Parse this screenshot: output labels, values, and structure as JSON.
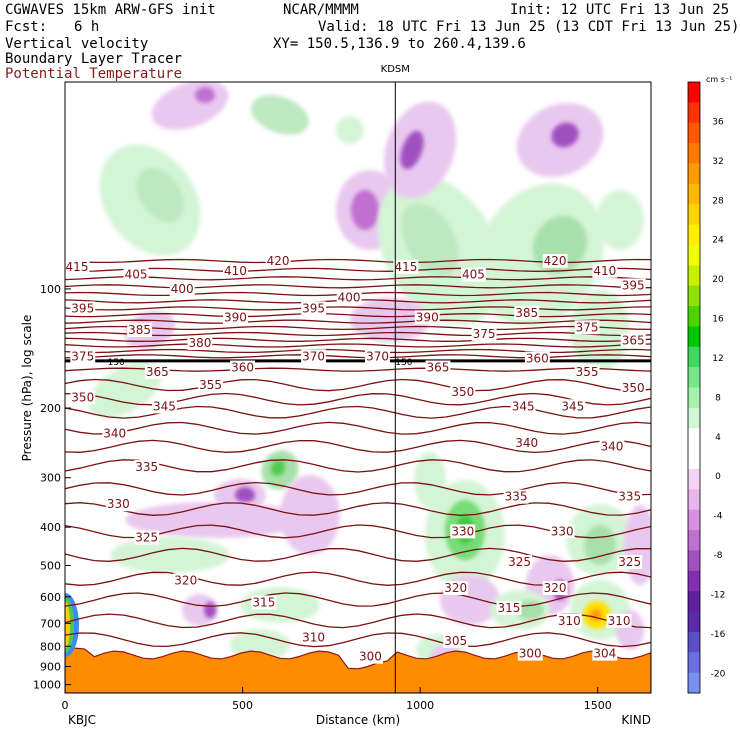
{
  "header": {
    "model": "CGWAVES 15km ARW-GFS init",
    "org": "NCAR/MMMM",
    "init": "Init: 12 UTC Fri 13 Jun 25",
    "fcst_label": "Fcst:",
    "fcst_value": "6 h",
    "valid": "Valid: 18 UTC Fri 13 Jun 25 (13 CDT Fri 13 Jun 25)",
    "field1": "Vertical velocity",
    "xy": "XY= 150.5,136.9 to 260.4,139.6",
    "field2": "Boundary Layer Tracer",
    "field3": "Potential Temperature",
    "field3_color": "#8b1a1a"
  },
  "chart_data": {
    "type": "heatmap",
    "xlabel": "Distance (km)",
    "ylabel": "Pressure (hPa), log scale",
    "xlim": [
      0,
      1650
    ],
    "ylim": [
      1050,
      30
    ],
    "y_scale": "log",
    "x_ticks": [
      0,
      500,
      1000,
      1500
    ],
    "y_ticks": [
      100,
      200,
      300,
      400,
      500,
      600,
      700,
      800,
      900,
      1000
    ],
    "left_end_label": "KBJC",
    "right_end_label": "KIND",
    "marker": {
      "label": "KDSM",
      "x": 930
    },
    "tropopause_label": "150",
    "colorbar": {
      "unit": "cm s⁻¹",
      "ticks": [
        36,
        32,
        28,
        24,
        20,
        16,
        12,
        8,
        4,
        0,
        -4,
        -8,
        -12,
        -16,
        -20
      ],
      "colors": [
        "#ff0000",
        "#ff3300",
        "#ff5a00",
        "#ff7b00",
        "#ff9a00",
        "#ffb800",
        "#ffd400",
        "#ffee00",
        "#f0ff00",
        "#c8f000",
        "#90e000",
        "#4cd400",
        "#00c800",
        "#40d860",
        "#78e68a",
        "#a8f0b0",
        "#d0f8d4",
        "#ffffff",
        "#ffffff",
        "#f4d4f4",
        "#e8b4ec",
        "#d890e0",
        "#c070d0",
        "#a050c0",
        "#8030b0",
        "#6020a0",
        "#5a2aa8",
        "#5a50c8",
        "#6a70e0",
        "#7a90f0"
      ]
    },
    "theta_labels": [
      {
        "v": 415,
        "x": 0,
        "p": 88
      },
      {
        "v": 405,
        "x": 200,
        "p": 92
      },
      {
        "v": 410,
        "x": 480,
        "p": 90
      },
      {
        "v": 420,
        "x": 600,
        "p": 85
      },
      {
        "v": 400,
        "x": 330,
        "p": 100
      },
      {
        "v": 395,
        "x": 50,
        "p": 112
      },
      {
        "v": 390,
        "x": 480,
        "p": 118
      },
      {
        "v": 395,
        "x": 700,
        "p": 112
      },
      {
        "v": 400,
        "x": 800,
        "p": 105
      },
      {
        "v": 385,
        "x": 210,
        "p": 127
      },
      {
        "v": 380,
        "x": 380,
        "p": 137
      },
      {
        "v": 375,
        "x": 50,
        "p": 148
      },
      {
        "v": 370,
        "x": 700,
        "p": 148
      },
      {
        "v": 370,
        "x": 880,
        "p": 148
      },
      {
        "v": 365,
        "x": 260,
        "p": 162
      },
      {
        "v": 360,
        "x": 500,
        "p": 158
      },
      {
        "v": 355,
        "x": 410,
        "p": 175
      },
      {
        "v": 350,
        "x": 50,
        "p": 188
      },
      {
        "v": 345,
        "x": 280,
        "p": 198
      },
      {
        "v": 340,
        "x": 140,
        "p": 232
      },
      {
        "v": 335,
        "x": 230,
        "p": 282
      },
      {
        "v": 330,
        "x": 150,
        "p": 350
      },
      {
        "v": 325,
        "x": 230,
        "p": 425
      },
      {
        "v": 320,
        "x": 340,
        "p": 545
      },
      {
        "v": 315,
        "x": 560,
        "p": 620
      },
      {
        "v": 310,
        "x": 700,
        "p": 760
      },
      {
        "v": 415,
        "x": 960,
        "p": 88
      },
      {
        "v": 405,
        "x": 1150,
        "p": 92
      },
      {
        "v": 420,
        "x": 1380,
        "p": 85
      },
      {
        "v": 410,
        "x": 1520,
        "p": 90
      },
      {
        "v": 395,
        "x": 1600,
        "p": 98
      },
      {
        "v": 390,
        "x": 1020,
        "p": 118
      },
      {
        "v": 385,
        "x": 1300,
        "p": 115
      },
      {
        "v": 375,
        "x": 1180,
        "p": 130
      },
      {
        "v": 375,
        "x": 1470,
        "p": 125
      },
      {
        "v": 365,
        "x": 1600,
        "p": 135
      },
      {
        "v": 365,
        "x": 1050,
        "p": 158
      },
      {
        "v": 360,
        "x": 1330,
        "p": 150
      },
      {
        "v": 355,
        "x": 1470,
        "p": 162
      },
      {
        "v": 350,
        "x": 1120,
        "p": 182
      },
      {
        "v": 350,
        "x": 1600,
        "p": 178
      },
      {
        "v": 345,
        "x": 1290,
        "p": 198
      },
      {
        "v": 345,
        "x": 1430,
        "p": 198
      },
      {
        "v": 340,
        "x": 1300,
        "p": 245
      },
      {
        "v": 340,
        "x": 1540,
        "p": 250
      },
      {
        "v": 335,
        "x": 1270,
        "p": 335
      },
      {
        "v": 335,
        "x": 1590,
        "p": 335
      },
      {
        "v": 330,
        "x": 1120,
        "p": 410
      },
      {
        "v": 330,
        "x": 1400,
        "p": 410
      },
      {
        "v": 325,
        "x": 1280,
        "p": 490
      },
      {
        "v": 325,
        "x": 1590,
        "p": 490
      },
      {
        "v": 320,
        "x": 1100,
        "p": 570
      },
      {
        "v": 320,
        "x": 1380,
        "p": 570
      },
      {
        "v": 315,
        "x": 1250,
        "p": 640
      },
      {
        "v": 310,
        "x": 1420,
        "p": 690
      },
      {
        "v": 310,
        "x": 1560,
        "p": 690
      },
      {
        "v": 305,
        "x": 1100,
        "p": 775
      },
      {
        "v": 300,
        "x": 1310,
        "p": 835
      },
      {
        "v": 304,
        "x": 1520,
        "p": 835
      },
      {
        "v": 300,
        "x": 860,
        "p": 850
      }
    ]
  }
}
